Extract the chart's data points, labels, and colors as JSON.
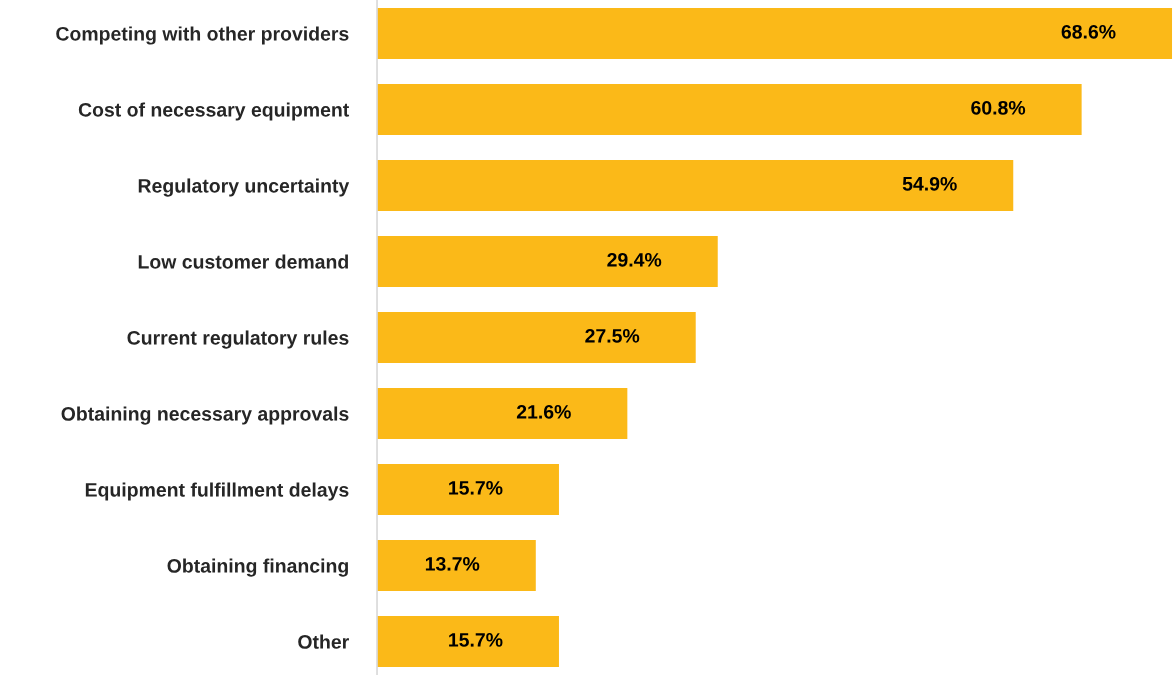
{
  "chart_data": {
    "type": "bar",
    "orientation": "horizontal",
    "categories": [
      "Competing with other providers",
      "Cost of necessary equipment",
      "Regulatory uncertainty",
      "Low customer demand",
      "Current regulatory rules",
      "Obtaining necessary approvals",
      "Equipment fulfillment delays",
      "Obtaining financing",
      "Other"
    ],
    "values": [
      68.6,
      60.8,
      54.9,
      29.4,
      27.5,
      21.6,
      15.7,
      13.7,
      15.7
    ],
    "value_labels": [
      "68.6%",
      "60.8%",
      "54.9%",
      "29.4%",
      "27.5%",
      "21.6%",
      "15.7%",
      "13.7%",
      "15.7%"
    ],
    "color": "#fbb918",
    "grid": false,
    "legend": false
  }
}
